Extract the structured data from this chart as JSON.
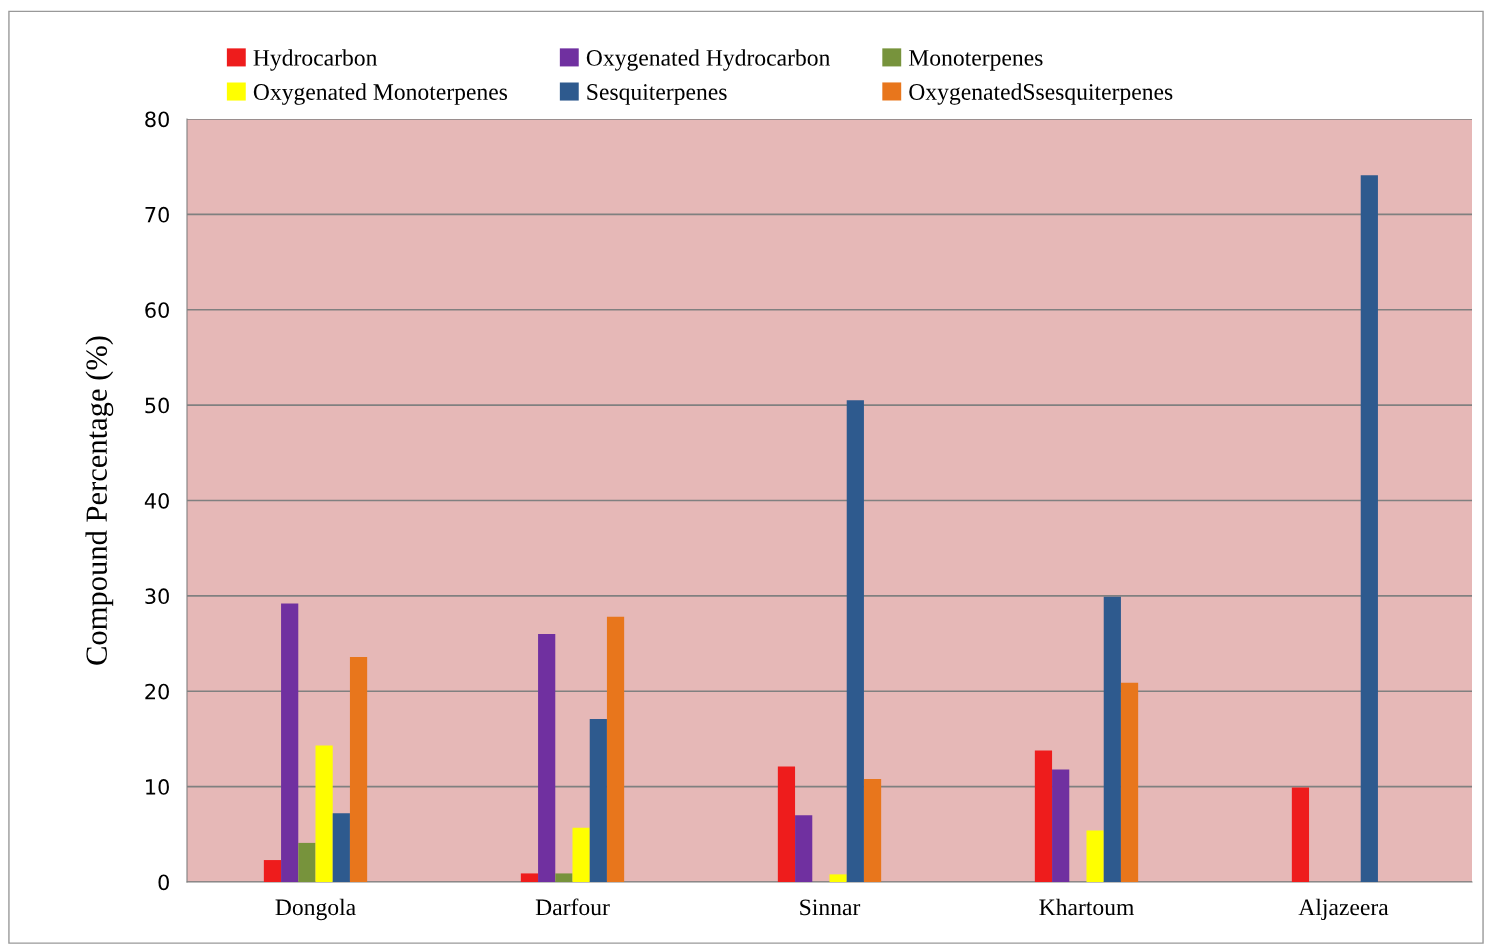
{
  "chart_data": {
    "type": "bar",
    "ylabel": "Compound Percentage (%)",
    "categories": [
      "Dongola",
      "Darfour",
      "Sinnar",
      "Khartoum",
      "Aljazeera"
    ],
    "series": [
      {
        "name": "Hydrocarbon",
        "color": "#ee1c1c",
        "values": [
          2.3,
          0.9,
          12.1,
          13.8,
          9.9
        ]
      },
      {
        "name": "Oxygenated Hydrocarbon",
        "color": "#7030a0",
        "values": [
          29.2,
          26.0,
          7.0,
          11.8,
          0
        ]
      },
      {
        "name": "Monoterpenes",
        "color": "#77933c",
        "values": [
          4.1,
          0.9,
          0,
          0,
          0
        ]
      },
      {
        "name": "Oxygenated Monoterpenes",
        "color": "#ffff00",
        "values": [
          14.3,
          5.7,
          0.8,
          5.4,
          0
        ]
      },
      {
        "name": "Sesquiterpenes",
        "color": "#2e5a8e",
        "values": [
          7.2,
          17.1,
          50.5,
          29.9,
          74.1
        ]
      },
      {
        "name": "OxygenatedSsesquiterpenes",
        "color": "#e8761c",
        "values": [
          23.6,
          27.8,
          10.8,
          20.9,
          0
        ]
      }
    ],
    "ylim": [
      0,
      80
    ],
    "yticks": [
      0,
      10,
      20,
      30,
      40,
      50,
      60,
      70,
      80
    ],
    "grid": "y",
    "legend": "top"
  }
}
